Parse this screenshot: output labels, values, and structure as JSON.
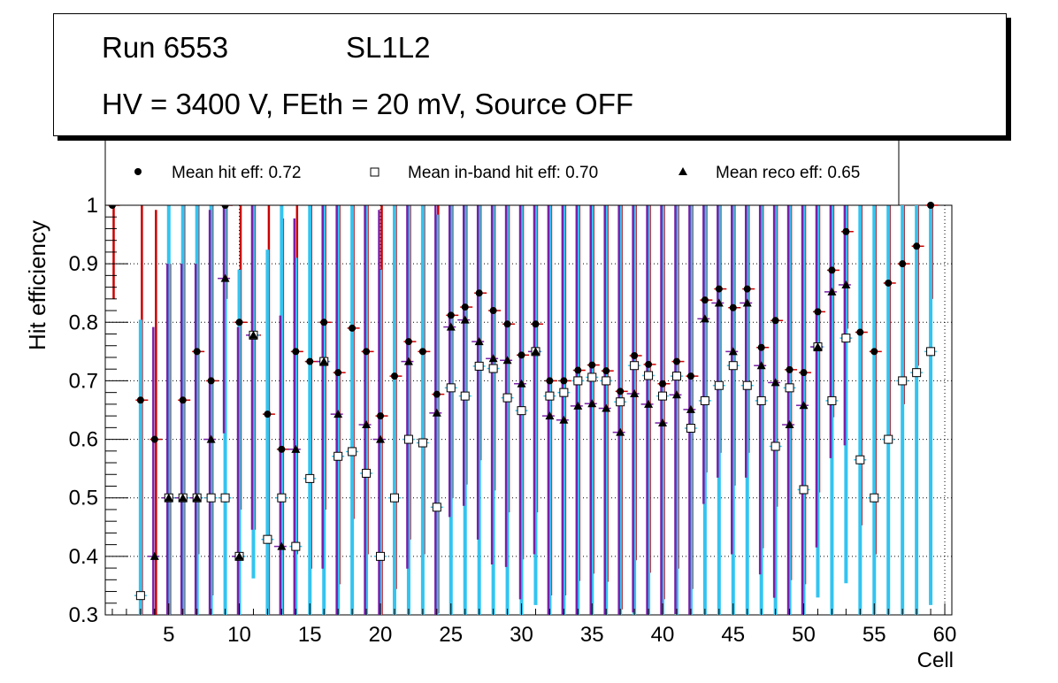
{
  "header": {
    "run": "Run 6553",
    "layer": "SL1L2",
    "conditions": "HV = 3400 V, FEth = 20 mV, Source OFF"
  },
  "colors": {
    "hit_error": "#cc0000",
    "inband_error": "#33c4f0",
    "reco_error": "#7a1fa8",
    "grid": "#000000"
  },
  "chart_data": {
    "type": "scatter",
    "xlabel": "Cell",
    "ylabel": "Hit efficiency",
    "xlim": [
      0.5,
      60.5
    ],
    "ylim": [
      0.3,
      1.0
    ],
    "x_ticks": [
      5,
      10,
      15,
      20,
      25,
      30,
      35,
      40,
      45,
      50,
      55,
      60
    ],
    "y_ticks": [
      0.3,
      0.4,
      0.5,
      0.6,
      0.7,
      0.8,
      0.9,
      1.0
    ],
    "y_tick_labels": [
      "0.3",
      "0.4",
      "0.5",
      "0.6",
      "0.7",
      "0.8",
      "0.9",
      "1"
    ],
    "grid": true,
    "legend_position": "top",
    "x": [
      1,
      2,
      3,
      4,
      5,
      6,
      7,
      8,
      9,
      10,
      11,
      12,
      13,
      14,
      15,
      16,
      17,
      18,
      19,
      20,
      21,
      22,
      23,
      24,
      25,
      26,
      27,
      28,
      29,
      30,
      31,
      32,
      33,
      34,
      35,
      36,
      37,
      38,
      39,
      40,
      41,
      42,
      43,
      44,
      45,
      46,
      47,
      48,
      49,
      50,
      51,
      52,
      53,
      54,
      55,
      56,
      57,
      58,
      59,
      60
    ],
    "series": [
      {
        "name": "Mean hit  eff: 0.72",
        "marker": "circle",
        "values": [
          1.0,
          null,
          0.667,
          0.6,
          0.5,
          0.667,
          0.75,
          0.7,
          1.0,
          0.8,
          0.778,
          0.643,
          0.583,
          0.75,
          0.733,
          0.8,
          0.714,
          0.79,
          0.75,
          0.64,
          0.708,
          0.767,
          0.75,
          0.677,
          0.812,
          0.826,
          0.85,
          0.82,
          0.797,
          0.744,
          0.797,
          0.7,
          0.7,
          0.718,
          0.727,
          0.717,
          0.682,
          0.743,
          0.728,
          0.695,
          0.733,
          0.708,
          0.838,
          0.857,
          0.825,
          0.857,
          0.757,
          0.803,
          0.719,
          0.714,
          0.818,
          0.889,
          0.955,
          0.783,
          0.75,
          0.867,
          0.9,
          0.93,
          1.0,
          null
        ]
      },
      {
        "name": "Mean in-band hit eff: 0.70",
        "marker": "open-square",
        "values": [
          null,
          null,
          0.333,
          null,
          0.5,
          0.5,
          0.5,
          0.5,
          0.5,
          0.4,
          0.778,
          0.429,
          0.5,
          0.417,
          0.533,
          0.733,
          0.571,
          0.579,
          0.542,
          0.4,
          0.5,
          0.6,
          0.594,
          0.484,
          0.688,
          0.674,
          0.725,
          0.721,
          0.671,
          0.649,
          0.75,
          0.674,
          0.68,
          0.7,
          0.706,
          0.7,
          0.664,
          0.726,
          0.709,
          0.674,
          0.708,
          0.619,
          0.666,
          0.692,
          0.726,
          0.692,
          0.666,
          0.588,
          0.688,
          0.514,
          0.758,
          0.666,
          0.773,
          0.565,
          0.5,
          0.6,
          0.7,
          0.714,
          0.75,
          null
        ]
      },
      {
        "name": "Mean reco eff: 0.65",
        "marker": "triangle",
        "values": [
          null,
          null,
          null,
          0.4,
          0.5,
          0.5,
          0.5,
          0.6,
          0.875,
          0.4,
          0.778,
          null,
          0.417,
          0.583,
          null,
          0.733,
          0.643,
          null,
          0.625,
          0.6,
          null,
          0.733,
          null,
          0.645,
          0.792,
          0.804,
          0.767,
          0.738,
          0.735,
          0.695,
          0.75,
          0.64,
          0.633,
          0.657,
          0.661,
          0.653,
          0.612,
          0.678,
          0.66,
          0.628,
          0.676,
          0.651,
          0.806,
          0.833,
          0.75,
          0.833,
          0.726,
          0.697,
          0.625,
          0.658,
          0.758,
          0.852,
          0.864,
          null,
          null,
          null,
          null,
          null,
          null,
          null
        ]
      }
    ]
  }
}
